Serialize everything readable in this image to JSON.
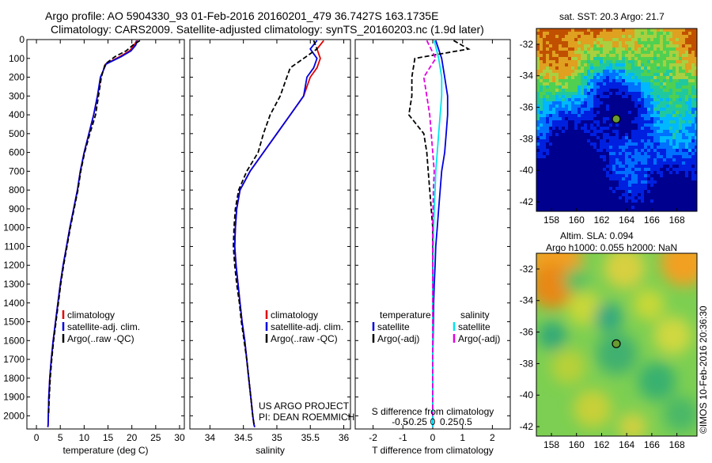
{
  "header": {
    "line1": "Argo profile: AO 5904330_93 01-Feb-2016 20160201_479 36.7427S 163.1735E",
    "line2": "Climatology: CARS2009. Satellite-adjusted climatology: synTS_20160203.nc (1.9d later)"
  },
  "credit": {
    "project": "US ARGO PROJECT",
    "pi": "PI: DEAN ROEMMICH",
    "imos": "©IMOS 10-Feb-2016 20:36:30"
  },
  "map_top": {
    "title": "sat. SST: 20.3 Argo: 21.7"
  },
  "map_bottom": {
    "title1": "Altim. SLA: 0.094",
    "title2": "Argo h1000: 0.055 h2000: NaN"
  },
  "colors": {
    "climatology": "#e00000",
    "satellite": "#0000e0",
    "argo": "#000000",
    "sal_satellite": "#00e5ee",
    "sal_argo": "#e000e0"
  },
  "chart_data": [
    {
      "type": "line",
      "xlabel": "temperature (deg C)",
      "xlim": [
        -2,
        31
      ],
      "ylim": [
        2070,
        0
      ],
      "x_ticks": [
        "0",
        "5",
        "10",
        "15",
        "20",
        "25",
        "30"
      ],
      "y_ticks": [
        "0",
        "100",
        "200",
        "300",
        "400",
        "500",
        "600",
        "700",
        "800",
        "900",
        "1000",
        "1100",
        "1200",
        "1300",
        "1400",
        "1500",
        "1600",
        "1700",
        "1800",
        "1900",
        "2000"
      ],
      "legend": [
        "climatology",
        "satellite-adj. clim.",
        "Argo(..raw -QC)"
      ],
      "series": [
        {
          "name": "climatology",
          "x": [
            21,
            20.5,
            19.5,
            17.5,
            14.5,
            13.5,
            12.8,
            12,
            11,
            10,
            9.2,
            8.6,
            7.8,
            7,
            6.3,
            5.6,
            5,
            4.5,
            4,
            3.5,
            3.1,
            2.8,
            2.6,
            2.5,
            2.45,
            2.4
          ],
          "y": [
            5,
            30,
            60,
            90,
            130,
            200,
            300,
            400,
            500,
            600,
            700,
            800,
            900,
            1000,
            1100,
            1200,
            1300,
            1400,
            1500,
            1600,
            1700,
            1800,
            1900,
            2000,
            2050,
            2060
          ]
        },
        {
          "name": "satellite-adj. clim.",
          "x": [
            21.2,
            20.8,
            19.8,
            17.8,
            14.6,
            13.4,
            12.8,
            12,
            11,
            10,
            9.2,
            8.6,
            7.8,
            7,
            6.3,
            5.6,
            5,
            4.5,
            4,
            3.5,
            3.1,
            2.8,
            2.6,
            2.5,
            2.45,
            2.4
          ],
          "y": [
            5,
            30,
            60,
            90,
            130,
            200,
            300,
            400,
            500,
            600,
            700,
            800,
            900,
            1000,
            1100,
            1200,
            1300,
            1400,
            1500,
            1600,
            1700,
            1800,
            1900,
            2000,
            2050,
            2060
          ]
        },
        {
          "name": "Argo(..raw -QC)",
          "x": [
            21.7,
            20.2,
            18.8,
            16.5,
            14.4,
            13.6,
            13,
            12.4,
            11.2,
            10.1,
            9.3,
            8.7,
            7.9,
            7.1,
            6.4,
            5.7,
            5.1,
            4.6,
            4.1,
            3.6,
            3.2,
            2.9,
            2.7,
            2.55
          ],
          "y": [
            5,
            30,
            60,
            90,
            130,
            200,
            300,
            400,
            500,
            600,
            700,
            800,
            900,
            1000,
            1100,
            1200,
            1300,
            1400,
            1500,
            1600,
            1700,
            1800,
            1900,
            2000
          ]
        }
      ]
    },
    {
      "type": "line",
      "xlabel": "salinity",
      "xlim": [
        33.7,
        36.1
      ],
      "ylim": [
        2070,
        0
      ],
      "x_ticks": [
        "34",
        "34.5",
        "35",
        "35.5",
        "36"
      ],
      "legend": [
        "climatology",
        "satellite-adj. clim.",
        "Argo(..raw -QC)"
      ],
      "series": [
        {
          "name": "climatology",
          "x": [
            35.7,
            35.6,
            35.65,
            35.6,
            35.5,
            35.4,
            35.2,
            35,
            34.8,
            34.6,
            34.45,
            34.4,
            34.38,
            34.37,
            34.39,
            34.42,
            34.45,
            34.48,
            34.52,
            34.55,
            34.58,
            34.61,
            34.64,
            34.66,
            34.67
          ],
          "y": [
            5,
            50,
            100,
            150,
            200,
            300,
            400,
            500,
            600,
            700,
            800,
            900,
            1000,
            1100,
            1200,
            1300,
            1400,
            1500,
            1600,
            1700,
            1800,
            1900,
            2000,
            2050,
            2060
          ]
        },
        {
          "name": "satellite-adj. clim.",
          "x": [
            35.6,
            35.5,
            35.6,
            35.55,
            35.45,
            35.4,
            35.2,
            35,
            34.8,
            34.6,
            34.45,
            34.4,
            34.38,
            34.37,
            34.39,
            34.42,
            34.45,
            34.48,
            34.52,
            34.55,
            34.58,
            34.61,
            34.64,
            34.66,
            34.67
          ],
          "y": [
            5,
            50,
            100,
            150,
            200,
            300,
            400,
            500,
            600,
            700,
            800,
            900,
            1000,
            1100,
            1200,
            1300,
            1400,
            1500,
            1600,
            1700,
            1800,
            1900,
            2000,
            2050,
            2060
          ]
        },
        {
          "name": "Argo(..raw -QC)",
          "x": [
            35.55,
            35.6,
            35.4,
            35.2,
            35.15,
            35.05,
            34.9,
            34.8,
            34.72,
            34.55,
            34.43,
            34.38,
            34.36,
            34.35,
            34.37,
            34.4,
            34.44,
            34.47,
            34.51,
            34.55,
            34.58,
            34.61,
            34.64,
            34.66
          ],
          "y": [
            5,
            50,
            100,
            150,
            200,
            300,
            400,
            500,
            600,
            700,
            800,
            900,
            1000,
            1100,
            1200,
            1300,
            1400,
            1500,
            1600,
            1700,
            1800,
            1900,
            2000,
            2050
          ]
        }
      ]
    },
    {
      "type": "line",
      "xlabel": "T difference from climatology",
      "top_label": "S difference from climatology",
      "xlim": [
        -2.6,
        2.6
      ],
      "ylim": [
        2070,
        0
      ],
      "x_ticks": [
        "-2",
        "-1",
        "0",
        "1",
        "2"
      ],
      "top_ticks": [
        "-0.5",
        "-0.25",
        "0",
        "0.25",
        "0.5"
      ],
      "legend": [
        "temperature",
        "satellite",
        "Argo(-adj)",
        "salinity",
        "satellite",
        "Argo(-adj)"
      ],
      "series": [
        {
          "name": "satellite",
          "x": [
            0.1,
            0.3,
            0.4,
            0.5,
            0.5,
            0.45,
            0.4,
            0.3,
            0.25,
            0.2,
            0.15,
            0.1,
            0.08,
            0.05,
            0.03,
            0.02,
            0.01,
            0.0,
            0.0,
            0.0,
            0.0,
            0.0
          ],
          "y": [
            5,
            100,
            200,
            300,
            400,
            500,
            600,
            700,
            800,
            900,
            1000,
            1100,
            1200,
            1300,
            1400,
            1500,
            1600,
            1700,
            1800,
            1900,
            2000,
            2060
          ]
        },
        {
          "name": "Argo(-adj)",
          "x": [
            0.7,
            1.2,
            -0.6,
            -0.7,
            -0.7,
            -0.8,
            -0.3,
            -0.2,
            -0.15,
            -0.1,
            -0.05,
            0.0,
            0.0,
            0.0,
            0.0,
            0.0,
            0.0,
            0.0,
            0.0,
            0.0
          ],
          "y": [
            5,
            50,
            100,
            200,
            300,
            400,
            500,
            600,
            700,
            800,
            900,
            1000,
            1100,
            1200,
            1300,
            1400,
            1500,
            1600,
            1800,
            2000
          ]
        },
        {
          "name": "satellite",
          "x": [
            0.05,
            0.2,
            0.3,
            0.3,
            0.25,
            0.2,
            0.15,
            0.1,
            0.08,
            0.05,
            0.03,
            0.02,
            0.01,
            0.0,
            0.0,
            0.0,
            0.0,
            0.0
          ],
          "y": [
            5,
            100,
            200,
            300,
            400,
            500,
            600,
            700,
            800,
            900,
            1000,
            1100,
            1200,
            1400,
            1600,
            1800,
            2000,
            2060
          ]
        },
        {
          "name": "Argo(-adj)",
          "x": [
            -0.2,
            0.1,
            -0.3,
            -0.2,
            -0.1,
            -0.05,
            0.0,
            0.05,
            0.02,
            0.0,
            0.0,
            0.0,
            0.0,
            0.0,
            0.0
          ],
          "y": [
            5,
            100,
            200,
            300,
            400,
            500,
            600,
            700,
            800,
            1000,
            1200,
            1400,
            1600,
            1800,
            2000
          ]
        }
      ]
    },
    {
      "type": "heatmap",
      "title": "sat. SST: 20.3 Argo: 21.7",
      "x_ticks": [
        "158",
        "160",
        "162",
        "164",
        "166",
        "168"
      ],
      "y_ticks": [
        "-32",
        "-34",
        "-36",
        "-38",
        "-40",
        "-42"
      ],
      "marker": {
        "lon": 163.17,
        "lat": -36.74
      }
    },
    {
      "type": "heatmap",
      "title": "Argo h1000: 0.055 h2000: NaN",
      "x_ticks": [
        "158",
        "160",
        "162",
        "164",
        "166",
        "168"
      ],
      "y_ticks": [
        "-32",
        "-34",
        "-36",
        "-38",
        "-40",
        "-42"
      ],
      "marker": {
        "lon": 163.17,
        "lat": -36.74
      }
    }
  ]
}
